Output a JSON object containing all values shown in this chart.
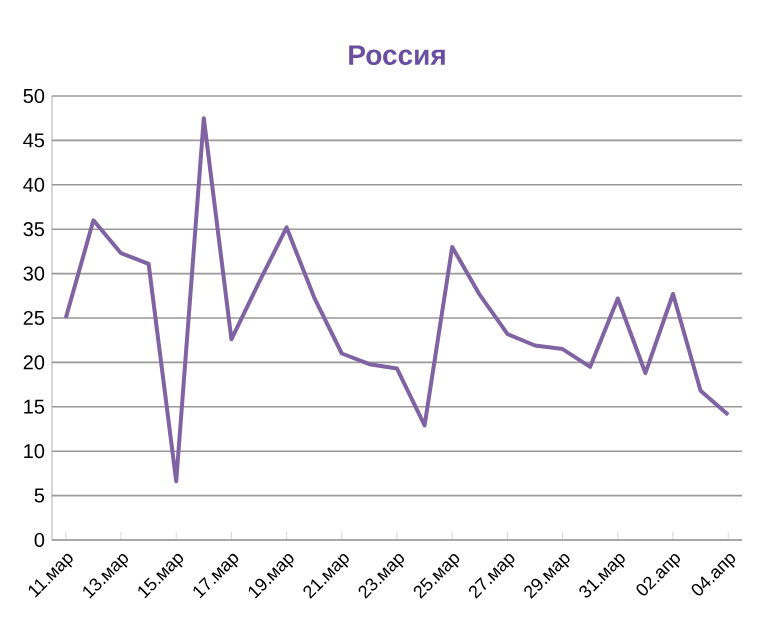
{
  "chart_data": {
    "type": "line",
    "title": "Россия",
    "categories": [
      "11.мар",
      null,
      "13.мар",
      null,
      "15.мар",
      null,
      "17.мар",
      null,
      "19.мар",
      null,
      "21.мар",
      null,
      "23.мар",
      null,
      "25.мар",
      null,
      "27.мар",
      null,
      "29.мар",
      null,
      "31.мар",
      null,
      "02.апр",
      null,
      "04.апр"
    ],
    "series": [
      {
        "color": "#7f63a2",
        "values": [
          25,
          36,
          32.3,
          31.1,
          6.6,
          47.5,
          22.6,
          29,
          35.2,
          27.3,
          21,
          19.8,
          19.3,
          12.9,
          33,
          27.6,
          23.2,
          21.9,
          21.5,
          19.5,
          27.2,
          18.8,
          27.7,
          16.8,
          14.1
        ]
      }
    ],
    "ylim": [
      0,
      50
    ],
    "yticks": [
      0,
      5,
      10,
      15,
      20,
      25,
      30,
      35,
      40,
      45,
      50
    ],
    "grid": "y",
    "marker": "none",
    "line_style": "solid"
  }
}
